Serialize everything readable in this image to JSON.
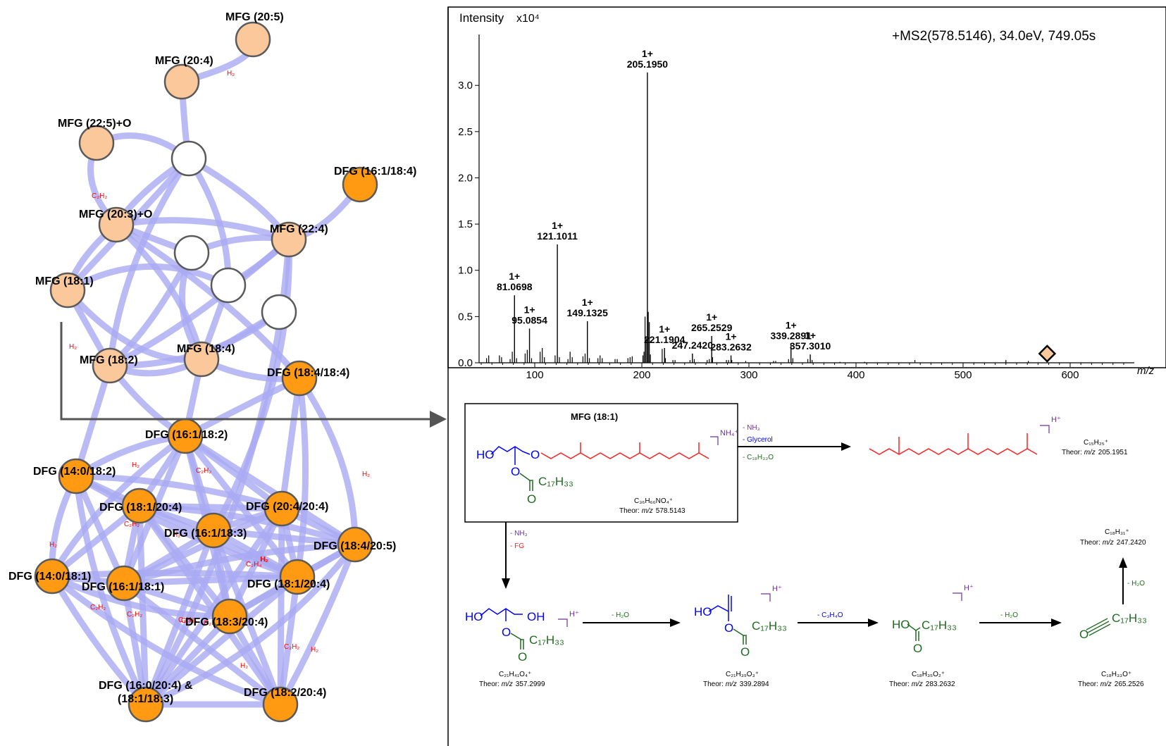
{
  "network": {
    "edge_color": "#a9aaf2",
    "light_node_color": "#fac89a",
    "dark_node_color": "#ff9a12",
    "empty_node_color": "#ffffff",
    "nodes": [
      {
        "id": "mfg205",
        "label": "MFG (20:5)",
        "kind": "light"
      },
      {
        "id": "mfg204",
        "label": "MFG (20:4)",
        "kind": "light"
      },
      {
        "id": "mfg225o",
        "label": "MFG (22:5)+O",
        "kind": "light"
      },
      {
        "id": "blank1",
        "label": "",
        "kind": "empty"
      },
      {
        "id": "dfg161184",
        "label": "DFG (16:1/18:4)",
        "kind": "dark"
      },
      {
        "id": "mfg203o",
        "label": "MFG (20:3)+O",
        "kind": "light"
      },
      {
        "id": "mfg224",
        "label": "MFG (22:4)",
        "kind": "light"
      },
      {
        "id": "blank2",
        "label": "",
        "kind": "empty"
      },
      {
        "id": "mfg181",
        "label": "MFG (18:1)",
        "kind": "light"
      },
      {
        "id": "blank3",
        "label": "",
        "kind": "empty"
      },
      {
        "id": "blank4",
        "label": "",
        "kind": "empty"
      },
      {
        "id": "mfg182",
        "label": "MFG (18:2)",
        "kind": "light"
      },
      {
        "id": "mfg184",
        "label": "MFG (18:4)",
        "kind": "light"
      },
      {
        "id": "dfg184184",
        "label": "DFG (18:4/18:4)",
        "kind": "dark"
      },
      {
        "id": "dfg161182",
        "label": "DFG (16:1/18:2)",
        "kind": "dark"
      },
      {
        "id": "dfg140182",
        "label": "DFG (14:0/18:2)",
        "kind": "dark"
      },
      {
        "id": "dfg181204",
        "label": "DFG (18:1/20:4)",
        "kind": "dark"
      },
      {
        "id": "dfg204204",
        "label": "DFG (20:4/20:4)",
        "kind": "dark"
      },
      {
        "id": "dfg161183",
        "label": "DFG (16:1/18:3)",
        "kind": "dark"
      },
      {
        "id": "dfg184205",
        "label": "DFG (18:4/20:5)",
        "kind": "dark"
      },
      {
        "id": "dfg140181",
        "label": "DFG (14:0/18:1)",
        "kind": "dark"
      },
      {
        "id": "dfg161181",
        "label": "DFG (16:1/18:1)",
        "kind": "dark"
      },
      {
        "id": "dfg181204b",
        "label": "DFG (18:1/20:4)",
        "kind": "dark"
      },
      {
        "id": "dfg183204",
        "label": "DFG (18:3/20:4)",
        "kind": "dark"
      },
      {
        "id": "dfg160204",
        "label": "DFG (16:0/20:4) &",
        "label2": "(18:1/18:3)",
        "kind": "dark"
      },
      {
        "id": "dfg182204",
        "label": "DFG (18:2/20:4)",
        "kind": "dark"
      }
    ],
    "edge_labels": [
      "H₂",
      "C₂H₂",
      "H₂",
      "H₂",
      "C₂H₂",
      "C₂H₂",
      "H₂",
      "C₂H₄",
      "H₂",
      "H₂",
      "C₂H₂",
      "C₂H₂",
      "C₂H₂",
      "C₂H₄",
      "H₂",
      "C₂H₂",
      "H₂",
      "H₂",
      "C₂H₂",
      "H₂"
    ]
  },
  "spectrum": {
    "y_title": "Intensity",
    "y_multiplier": "x10⁴",
    "scan_label": "+MS2(578.5146), 34.0eV, 749.05s",
    "x_title": "m/z",
    "precursor_mz": 578.5146,
    "marker_color": "#fac89a",
    "chart_data": {
      "type": "bar",
      "x_range": [
        48,
        652
      ],
      "y_range": [
        0,
        3.55
      ],
      "x_ticks": [
        100,
        200,
        300,
        400,
        500,
        600
      ],
      "y_ticks": [
        0.0,
        0.5,
        1.0,
        1.5,
        2.0,
        2.5,
        3.0
      ],
      "labeled_peaks": [
        {
          "charge": "1+",
          "mz": "205.1950",
          "x": 205.195,
          "y": 3.14
        },
        {
          "charge": "1+",
          "mz": "121.1011",
          "x": 121.1011,
          "y": 1.28
        },
        {
          "charge": "1+",
          "mz": "81.0698",
          "x": 81.0698,
          "y": 0.73
        },
        {
          "charge": "1+",
          "mz": "95.0854",
          "x": 95.0854,
          "y": 0.37
        },
        {
          "charge": "1+",
          "mz": "149.1325",
          "x": 149.1325,
          "y": 0.45
        },
        {
          "charge": "1+",
          "mz": "221.1904",
          "x": 221.1904,
          "y": 0.16
        },
        {
          "charge": "",
          "mz": "247.2420",
          "x": 247.242,
          "y": 0.1
        },
        {
          "charge": "1+",
          "mz": "265.2529",
          "x": 265.2529,
          "y": 0.29
        },
        {
          "charge": "1+",
          "mz": "283.2632",
          "x": 283.2632,
          "y": 0.08
        },
        {
          "charge": "1+",
          "mz": "339.2891",
          "x": 339.2891,
          "y": 0.2
        },
        {
          "charge": "1+",
          "mz": "357.3010",
          "x": 357.301,
          "y": 0.09
        }
      ],
      "minor_peaks": [
        [
          55,
          0.05
        ],
        [
          57,
          0.08
        ],
        [
          67,
          0.08
        ],
        [
          69,
          0.06
        ],
        [
          77,
          0.04
        ],
        [
          79,
          0.12
        ],
        [
          83,
          0.05
        ],
        [
          91,
          0.1
        ],
        [
          93,
          0.14
        ],
        [
          97,
          0.05
        ],
        [
          105,
          0.12
        ],
        [
          107,
          0.16
        ],
        [
          109,
          0.06
        ],
        [
          119,
          0.08
        ],
        [
          123,
          0.06
        ],
        [
          131,
          0.04
        ],
        [
          133,
          0.12
        ],
        [
          135,
          0.06
        ],
        [
          145,
          0.07
        ],
        [
          147,
          0.1
        ],
        [
          151,
          0.05
        ],
        [
          159,
          0.05
        ],
        [
          161,
          0.08
        ],
        [
          163,
          0.05
        ],
        [
          175,
          0.04
        ],
        [
          177,
          0.04
        ],
        [
          187,
          0.05
        ],
        [
          189,
          0.06
        ],
        [
          191,
          0.07
        ],
        [
          201,
          0.08
        ],
        [
          202,
          0.12
        ],
        [
          203,
          0.5
        ],
        [
          204,
          0.27
        ],
        [
          206,
          0.55
        ],
        [
          207,
          0.44
        ],
        [
          208,
          0.09
        ],
        [
          219,
          0.15
        ],
        [
          222,
          0.05
        ],
        [
          229,
          0.03
        ],
        [
          231,
          0.03
        ],
        [
          245,
          0.03
        ],
        [
          249,
          0.04
        ],
        [
          261,
          0.03
        ],
        [
          263,
          0.04
        ],
        [
          266,
          0.06
        ],
        [
          279,
          0.03
        ],
        [
          281,
          0.03
        ],
        [
          284,
          0.03
        ],
        [
          297,
          0.02
        ],
        [
          323,
          0.02
        ],
        [
          325,
          0.02
        ],
        [
          337,
          0.04
        ],
        [
          341,
          0.05
        ],
        [
          355,
          0.04
        ],
        [
          359,
          0.03
        ],
        [
          385,
          0.01
        ],
        [
          408,
          0.01
        ],
        [
          455,
          0.03
        ],
        [
          540,
          0.03
        ],
        [
          561,
          0.02
        ]
      ]
    }
  },
  "scheme": {
    "precursor_name": "MFG (18:1)",
    "precursor_adduct": "NH₄⁺",
    "precursor_formula": "C₃₆H₆₆NO₄⁺",
    "precursor_theor_prefix": "Theor: ",
    "precursor_theor_mz": "m/z",
    "precursor_theor_value": "578.5143",
    "ho": "HO",
    "oh": "OH",
    "o": "O",
    "o_eq": "O",
    "c17h33": "C₁₇H₃₃",
    "h_plus": "H⁺",
    "loss_nh3": "- NH₃",
    "loss_glycerol": "- Glycerol",
    "loss_c18h33o": "- C₁₈H₃₃O",
    "loss_fg": "- FG",
    "loss_h2o": "- H₂O",
    "loss_c3h4o": "- C₃H₄O",
    "ion205_formula": "C₁₅H₂₅⁺",
    "ion205_theor": "205.1951",
    "ion357_formula": "C₂₁H₄₁O₄⁺",
    "ion357_theor": "357.2999",
    "ion339_formula": "C₂₁H₃₉O₃⁺",
    "ion339_theor": "339.2894",
    "ion283_formula": "C₁₈H₃₅O₂⁺",
    "ion283_theor": "283.2632",
    "ion265_formula": "C₁₈H₃₃O⁺",
    "ion265_theor": "265.2526",
    "ion247_formula": "C₁₈H₃₁⁺",
    "ion247_theor": "247.2420",
    "theor_prefix": "Theor: ",
    "mz_italic": "m/z",
    "color_blue": "#0000ff",
    "color_green": "#1f6b1f",
    "color_red": "#ff2020",
    "color_purple": "#7030a0"
  }
}
